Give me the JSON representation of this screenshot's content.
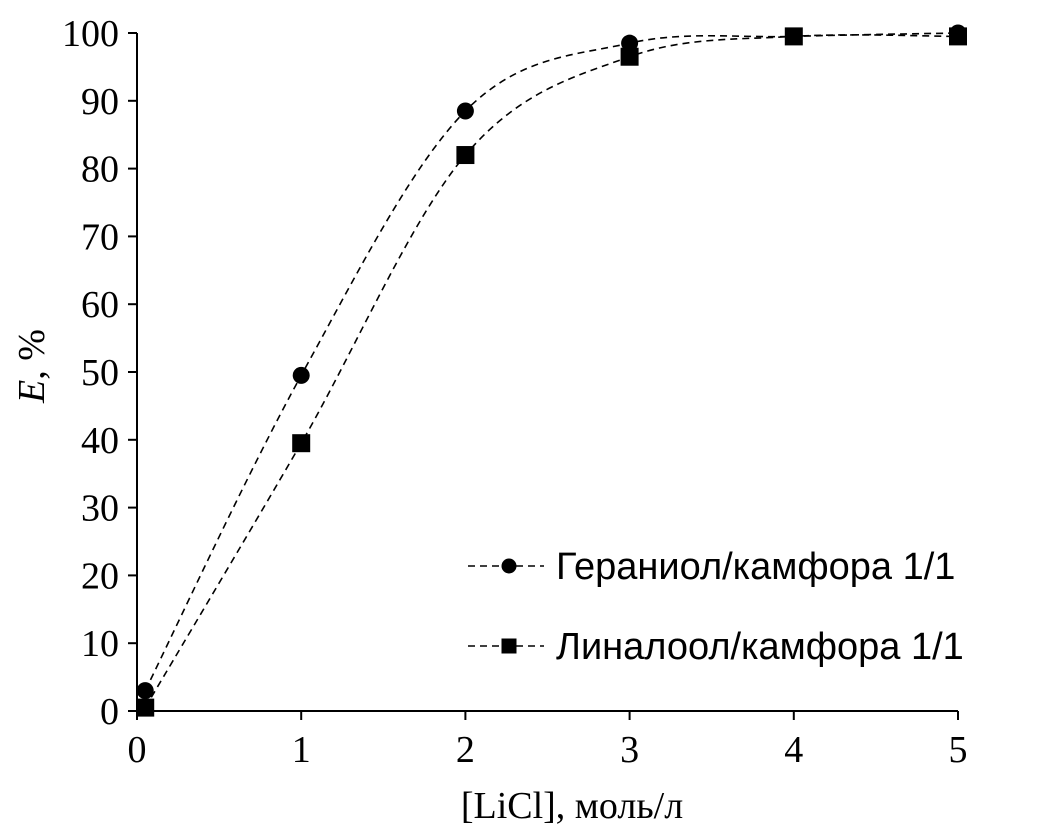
{
  "chart_data": {
    "type": "line",
    "title": "",
    "xlabel": "[LiCl],  моль/л",
    "ylabel_italic": "E",
    "ylabel_rest": ", %",
    "xlim": [
      0,
      5
    ],
    "ylim": [
      0,
      100
    ],
    "xticks": [
      0,
      1,
      2,
      3,
      4,
      5
    ],
    "yticks": [
      0,
      10,
      20,
      30,
      40,
      50,
      60,
      70,
      80,
      90,
      100
    ],
    "grid": false,
    "legend_position": "lower-right",
    "series": [
      {
        "name": "Гераниол/камфора 1/1",
        "marker": "circle",
        "color": "#000000",
        "line_style": "dashed",
        "x": [
          0.05,
          1,
          2,
          3,
          4,
          5
        ],
        "y": [
          3,
          49.5,
          88.5,
          98.5,
          99.5,
          100
        ]
      },
      {
        "name": "Линалоол/камфора 1/1",
        "marker": "square",
        "color": "#000000",
        "line_style": "dashed",
        "x": [
          0.05,
          1,
          2,
          3,
          4,
          5
        ],
        "y": [
          0.5,
          39.5,
          82,
          96.5,
          99.5,
          99.5
        ]
      }
    ]
  }
}
